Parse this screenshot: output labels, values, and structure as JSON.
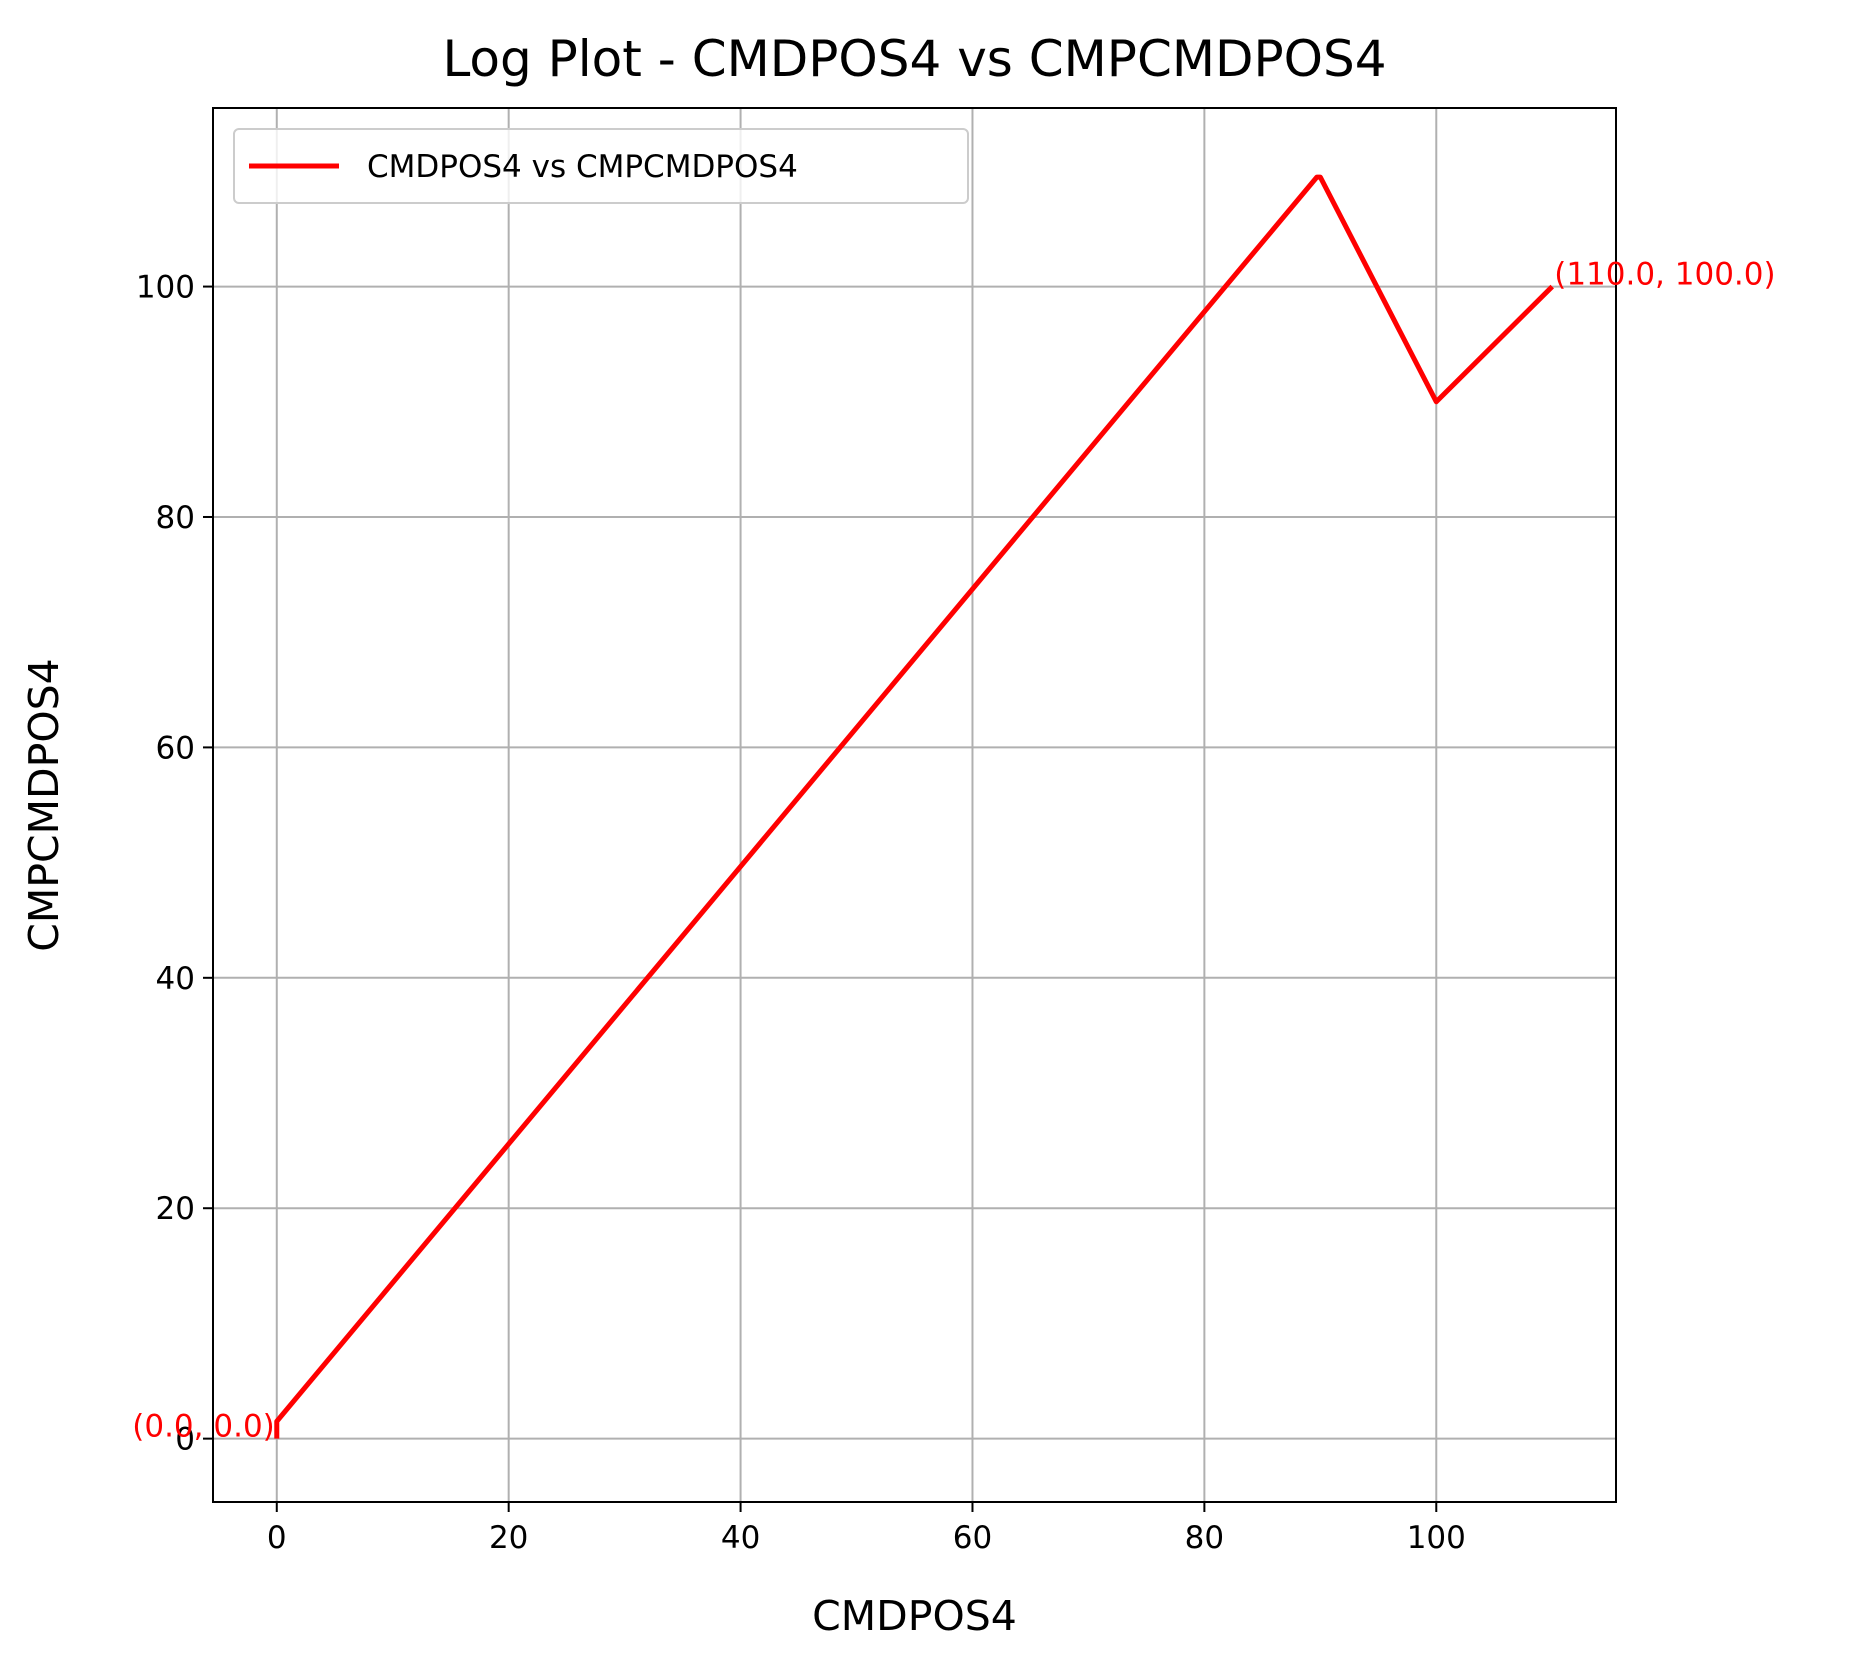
{
  "chart_data": {
    "type": "line",
    "title": "Log Plot - CMDPOS4 vs CMPCMDPOS4",
    "xlabel": "CMDPOS4",
    "ylabel": "CMPCMDPOS4",
    "xlim": [
      -5.5,
      115.5
    ],
    "ylim": [
      -5.5,
      115.5
    ],
    "xticks": [
      0,
      20,
      40,
      60,
      80,
      100
    ],
    "yticks": [
      0,
      20,
      40,
      60,
      80,
      100
    ],
    "grid": true,
    "legend_position": "top-left",
    "series": [
      {
        "name": "CMDPOS4 vs CMPCMDPOS4",
        "color": "#ff0000",
        "x": [
          0,
          0,
          89.7,
          90,
          100,
          110
        ],
        "y": [
          0,
          1.5,
          109.5,
          109.5,
          90,
          100
        ]
      }
    ],
    "annotations": [
      {
        "text": "(0.0, 0.0)",
        "x": 0,
        "y": 0,
        "color": "#ff0000",
        "align": "right"
      },
      {
        "text": "(110.0, 100.0)",
        "x": 110,
        "y": 100,
        "color": "#ff0000",
        "align": "left"
      }
    ]
  }
}
